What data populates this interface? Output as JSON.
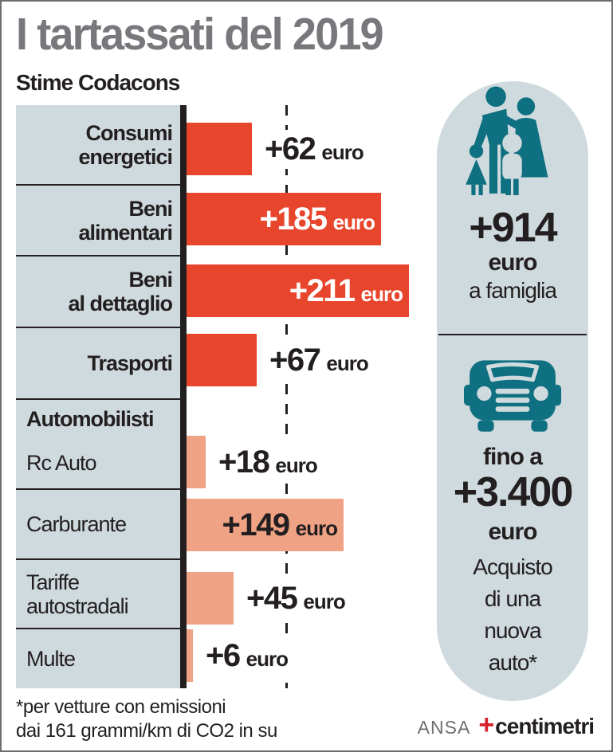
{
  "title": "I tartassati del 2019",
  "subtitle": "Stime Codacons",
  "colors": {
    "red": "#e7452c",
    "salmon": "#f0a285",
    "teal": "#0e7080",
    "panel": "#cfdade",
    "gray": "#77787b",
    "ink": "#231f20"
  },
  "chart_data": {
    "type": "bar",
    "orientation": "horizontal",
    "unit": "euro",
    "gridline": "dashed vertical",
    "categories": [
      "Consumi energetici",
      "Beni alimentari",
      "Beni al dettaglio",
      "Trasporti",
      "Automobilisti",
      "Rc Auto",
      "Carburante",
      "Tariffe autostradali",
      "Multe"
    ],
    "values": [
      62,
      185,
      211,
      67,
      null,
      18,
      149,
      45,
      6
    ],
    "rows": [
      {
        "label": "Consumi\nenergetici",
        "display": "+62",
        "value": 62,
        "unit": "euro",
        "color": "red"
      },
      {
        "label": "Beni\nalimentari",
        "display": "+185",
        "value": 185,
        "unit": "euro",
        "color": "red"
      },
      {
        "label": "Beni\nal dettaglio",
        "display": "+211",
        "value": 211,
        "unit": "euro",
        "color": "red"
      },
      {
        "label": "Trasporti",
        "display": "+67",
        "value": 67,
        "unit": "euro",
        "color": "red"
      },
      {
        "label": "Automobilisti",
        "header": true
      },
      {
        "label": "Rc Auto",
        "display": "+18",
        "value": 18,
        "unit": "euro",
        "color": "salmon"
      },
      {
        "label": "Carburante",
        "display": "+149",
        "value": 149,
        "unit": "euro",
        "color": "salmon"
      },
      {
        "label": "Tariffe\nautostradali",
        "display": "+45",
        "value": 45,
        "unit": "euro",
        "color": "salmon"
      },
      {
        "label": "Multe",
        "display": "+6",
        "value": 6,
        "unit": "euro",
        "color": "salmon"
      }
    ]
  },
  "panel": {
    "family_total": {
      "value": "+914",
      "unit": "euro",
      "caption": "a famiglia"
    },
    "car_total": {
      "prefix": "fino a",
      "value": "+3.400",
      "unit": "euro",
      "caption": "Acquisto\ndi una\nnuova\nauto*"
    }
  },
  "footnote": "*per vetture con emissioni\ndai 161 grammi/km di CO2 in su",
  "credits": {
    "agency": "ANSA",
    "brand_plus": "+",
    "brand": "centimetri"
  }
}
